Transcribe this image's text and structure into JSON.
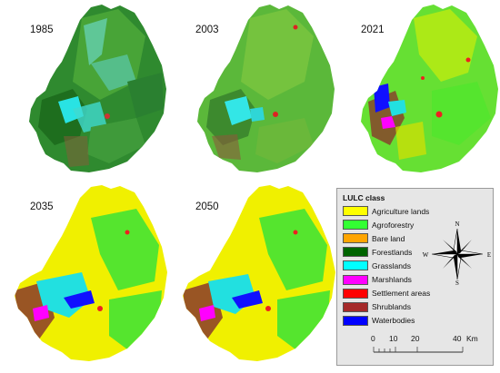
{
  "maps": [
    {
      "year": "1985"
    },
    {
      "year": "2003"
    },
    {
      "year": "2021"
    },
    {
      "year": "2035"
    },
    {
      "year": "2050"
    }
  ],
  "legend": {
    "title": "LULC class",
    "items": [
      {
        "label": "Agriculture lands",
        "color": "#ffff00"
      },
      {
        "label": "Agroforestry",
        "color": "#33ff33"
      },
      {
        "label": "Bare land",
        "color": "#ffa500"
      },
      {
        "label": "Forestlands",
        "color": "#006400"
      },
      {
        "label": "Grasslands",
        "color": "#00ffff"
      },
      {
        "label": "Marshlands",
        "color": "#ff00ff"
      },
      {
        "label": "Settlement areas",
        "color": "#ff0000"
      },
      {
        "label": "Shrublands",
        "color": "#a52a2a"
      },
      {
        "label": "Waterbodies",
        "color": "#0000ff"
      }
    ]
  },
  "north_arrow": {
    "n": "N",
    "s": "S",
    "e": "E",
    "w": "W"
  },
  "scale": {
    "ticks": [
      "0",
      "10",
      "20",
      "40"
    ],
    "unit": "Km"
  }
}
